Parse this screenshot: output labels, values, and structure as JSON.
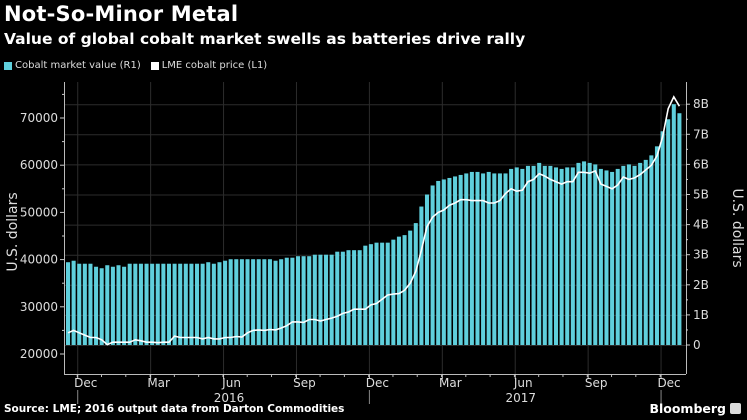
{
  "header": {
    "title": "Not-So-Minor Metal",
    "subtitle": "Value of global cobalt market swells as batteries drive rally"
  },
  "legend": [
    {
      "label": "Cobalt market value (R1)",
      "color": "#5fcfdc"
    },
    {
      "label": "LME cobalt price (L1)",
      "color": "#ffffff"
    }
  ],
  "footer": {
    "source": "Source: LME; 2016 output data from Darton Commodities",
    "brand": "Bloomberg"
  },
  "chart_data": {
    "type": "bar+line",
    "title": "Not-So-Minor Metal",
    "subtitle": "Value of global cobalt market swells as batteries drive rally",
    "frequency": "weekly",
    "x_range": [
      "Dec 2015",
      "Dec 2017"
    ],
    "x_ticks": [
      {
        "label": "Dec",
        "index": 2
      },
      {
        "label": "Mar",
        "index": 15
      },
      {
        "label": "Jun",
        "index": 28
      },
      {
        "label": "Sep",
        "index": 41
      },
      {
        "label": "Dec",
        "index": 54
      },
      {
        "label": "Mar",
        "index": 67
      },
      {
        "label": "Jun",
        "index": 80
      },
      {
        "label": "Sep",
        "index": 93
      },
      {
        "label": "Dec",
        "index": 106
      }
    ],
    "year_labels": [
      {
        "label": "2016",
        "index": 28
      },
      {
        "label": "2017",
        "index": 80
      }
    ],
    "left_axis": {
      "label": "U.S. dollars",
      "ylim": [
        17000,
        77000
      ],
      "ticks": [
        20000,
        30000,
        40000,
        50000,
        60000,
        70000
      ],
      "tick_labels": [
        "20000",
        "30000",
        "40000",
        "50000",
        "60000",
        "70000"
      ]
    },
    "right_axis": {
      "label": "U.S. dollars",
      "ylim": [
        -0.6,
        8.6
      ],
      "ticks": [
        0,
        1,
        2,
        3,
        4,
        5,
        6,
        7,
        8
      ],
      "tick_labels": [
        "0",
        "1B",
        "2B",
        "3B",
        "4B",
        "5B",
        "6B",
        "7B",
        "8B"
      ]
    },
    "grid": true,
    "legend_position": "top-left",
    "series": [
      {
        "name": "Cobalt market value (R1)",
        "type": "bar",
        "axis": "right",
        "unit": "billion USD",
        "color": "#5fcfdc",
        "values": [
          2.75,
          2.8,
          2.7,
          2.7,
          2.7,
          2.6,
          2.55,
          2.65,
          2.6,
          2.65,
          2.6,
          2.7,
          2.7,
          2.7,
          2.7,
          2.7,
          2.7,
          2.7,
          2.7,
          2.7,
          2.7,
          2.7,
          2.7,
          2.7,
          2.7,
          2.75,
          2.7,
          2.75,
          2.8,
          2.85,
          2.85,
          2.85,
          2.85,
          2.85,
          2.85,
          2.85,
          2.85,
          2.8,
          2.85,
          2.9,
          2.9,
          2.95,
          2.95,
          2.95,
          3.0,
          3.0,
          3.0,
          3.0,
          3.1,
          3.1,
          3.15,
          3.15,
          3.15,
          3.3,
          3.35,
          3.4,
          3.4,
          3.4,
          3.5,
          3.6,
          3.65,
          3.8,
          4.05,
          4.6,
          5.0,
          5.3,
          5.45,
          5.5,
          5.55,
          5.6,
          5.65,
          5.7,
          5.75,
          5.75,
          5.7,
          5.75,
          5.7,
          5.7,
          5.7,
          5.85,
          5.9,
          5.85,
          5.95,
          5.95,
          6.05,
          5.95,
          5.95,
          5.9,
          5.85,
          5.9,
          5.9,
          6.05,
          6.1,
          6.05,
          6.0,
          5.85,
          5.8,
          5.75,
          5.85,
          5.95,
          6.0,
          5.95,
          6.05,
          6.15,
          6.3,
          6.6,
          7.1,
          7.5,
          8.0,
          7.7
        ]
      },
      {
        "name": "LME cobalt price (L1)",
        "type": "line",
        "axis": "left",
        "unit": "USD per tonne",
        "color": "#ffffff",
        "values": [
          24500,
          25000,
          24500,
          24000,
          23500,
          23500,
          23000,
          22000,
          22500,
          22500,
          22500,
          22500,
          23000,
          22800,
          22500,
          22500,
          22400,
          22500,
          22500,
          23800,
          23500,
          23500,
          23500,
          23500,
          23200,
          23500,
          23200,
          23200,
          23500,
          23500,
          23700,
          23600,
          24500,
          25000,
          25100,
          25000,
          25200,
          25100,
          25500,
          26000,
          26800,
          26800,
          26700,
          27300,
          27300,
          27000,
          27300,
          27600,
          28000,
          28600,
          28900,
          29500,
          29500,
          29500,
          30400,
          30700,
          31600,
          32500,
          32700,
          32800,
          33500,
          35000,
          37500,
          42000,
          47000,
          49000,
          50000,
          50500,
          51500,
          52000,
          52700,
          52700,
          52500,
          52500,
          52500,
          52000,
          52000,
          52500,
          54000,
          55000,
          54500,
          54700,
          56500,
          57000,
          58200,
          57700,
          57000,
          56500,
          56000,
          56500,
          56500,
          58500,
          58500,
          58300,
          58800,
          56000,
          55500,
          55000,
          55800,
          57500,
          57000,
          57300,
          58000,
          59000,
          60000,
          62000,
          66000,
          72000,
          74500,
          72500
        ]
      }
    ]
  }
}
